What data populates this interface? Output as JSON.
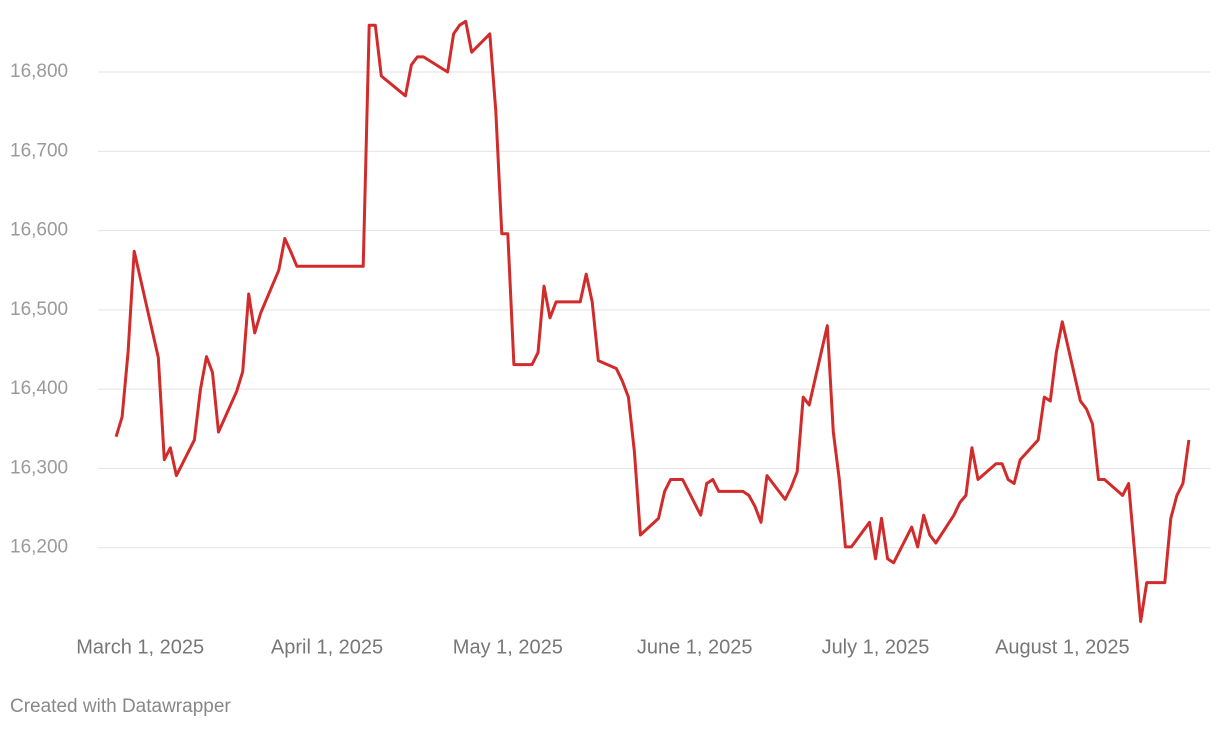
{
  "chart_data": {
    "type": "line",
    "footer": "Created with Datawrapper",
    "x": [
      "2025-02-25",
      "2025-02-26",
      "2025-02-27",
      "2025-02-28",
      "2025-03-04",
      "2025-03-05",
      "2025-03-06",
      "2025-03-07",
      "2025-03-10",
      "2025-03-11",
      "2025-03-12",
      "2025-03-13",
      "2025-03-14",
      "2025-03-17",
      "2025-03-18",
      "2025-03-19",
      "2025-03-20",
      "2025-03-21",
      "2025-03-24",
      "2025-03-25",
      "2025-03-26",
      "2025-03-27",
      "2025-04-07",
      "2025-04-08",
      "2025-04-09",
      "2025-04-10",
      "2025-04-14",
      "2025-04-15",
      "2025-04-16",
      "2025-04-17",
      "2025-04-21",
      "2025-04-22",
      "2025-04-23",
      "2025-04-24",
      "2025-04-25",
      "2025-04-28",
      "2025-04-29",
      "2025-04-30",
      "2025-05-01",
      "2025-05-02",
      "2025-05-05",
      "2025-05-06",
      "2025-05-07",
      "2025-05-08",
      "2025-05-09",
      "2025-05-13",
      "2025-05-14",
      "2025-05-15",
      "2025-05-16",
      "2025-05-19",
      "2025-05-20",
      "2025-05-21",
      "2025-05-22",
      "2025-05-23",
      "2025-05-26",
      "2025-05-27",
      "2025-05-28",
      "2025-05-30",
      "2025-06-02",
      "2025-06-03",
      "2025-06-04",
      "2025-06-05",
      "2025-06-09",
      "2025-06-10",
      "2025-06-11",
      "2025-06-12",
      "2025-06-13",
      "2025-06-16",
      "2025-06-17",
      "2025-06-18",
      "2025-06-19",
      "2025-06-20",
      "2025-06-23",
      "2025-06-24",
      "2025-06-25",
      "2025-06-26",
      "2025-06-27",
      "2025-06-30",
      "2025-07-01",
      "2025-07-02",
      "2025-07-03",
      "2025-07-04",
      "2025-07-07",
      "2025-07-08",
      "2025-07-09",
      "2025-07-10",
      "2025-07-11",
      "2025-07-14",
      "2025-07-15",
      "2025-07-16",
      "2025-07-17",
      "2025-07-18",
      "2025-07-21",
      "2025-07-22",
      "2025-07-23",
      "2025-07-24",
      "2025-07-25",
      "2025-07-28",
      "2025-07-29",
      "2025-07-30",
      "2025-07-31",
      "2025-08-01",
      "2025-08-04",
      "2025-08-05",
      "2025-08-06",
      "2025-08-07",
      "2025-08-08",
      "2025-08-11",
      "2025-08-12",
      "2025-08-14",
      "2025-08-15",
      "2025-08-18",
      "2025-08-19",
      "2025-08-20",
      "2025-08-21",
      "2025-08-22"
    ],
    "series": [
      {
        "color": "#d12b2b",
        "values": [
          16340,
          16365,
          16447,
          16574,
          16440,
          16311,
          16326,
          16291,
          16336,
          16400,
          16441,
          16421,
          16346,
          16397,
          16422,
          16520,
          16471,
          16496,
          16550,
          16590,
          16573,
          16555,
          16555,
          16859,
          16859,
          16795,
          16770,
          16809,
          16819,
          16819,
          16800,
          16848,
          16859,
          16864,
          16825,
          16848,
          16751,
          16596,
          16596,
          16431,
          16431,
          16446,
          16530,
          16490,
          16510,
          16510,
          16545,
          16510,
          16436,
          16426,
          16410,
          16390,
          16321,
          16216,
          16237,
          16271,
          16286,
          16286,
          16241,
          16281,
          16286,
          16271,
          16271,
          16266,
          16252,
          16232,
          16291,
          16261,
          16276,
          16296,
          16390,
          16380,
          16480,
          16346,
          16286,
          16201,
          16201,
          16232,
          16186,
          16237,
          16186,
          16181,
          16226,
          16201,
          16241,
          16216,
          16206,
          16241,
          16257,
          16266,
          16326,
          16286,
          16306,
          16306,
          16286,
          16281,
          16311,
          16336,
          16390,
          16385,
          16446,
          16485,
          16385,
          16375,
          16356,
          16286,
          16286,
          16266,
          16281,
          16107,
          16156,
          16156,
          16237,
          16266,
          16281,
          16336
        ]
      }
    ],
    "xlim": [
      "2025-02-22",
      "2025-08-25"
    ],
    "xticks": [
      {
        "value": "2025-03-01",
        "label": "March 1, 2025"
      },
      {
        "value": "2025-04-01",
        "label": "April 1, 2025"
      },
      {
        "value": "2025-05-01",
        "label": "May 1, 2025"
      },
      {
        "value": "2025-06-01",
        "label": "June 1, 2025"
      },
      {
        "value": "2025-07-01",
        "label": "July 1, 2025"
      },
      {
        "value": "2025-08-01",
        "label": "August 1, 2025"
      }
    ],
    "ylim": [
      16100,
      16870
    ],
    "yticks": [
      {
        "value": 16200,
        "label": "16,200"
      },
      {
        "value": 16300,
        "label": "16,300"
      },
      {
        "value": 16400,
        "label": "16,400"
      },
      {
        "value": 16500,
        "label": "16,500"
      },
      {
        "value": 16600,
        "label": "16,600"
      },
      {
        "value": 16700,
        "label": "16,700"
      },
      {
        "value": 16800,
        "label": "16,800"
      }
    ],
    "grid": true
  }
}
